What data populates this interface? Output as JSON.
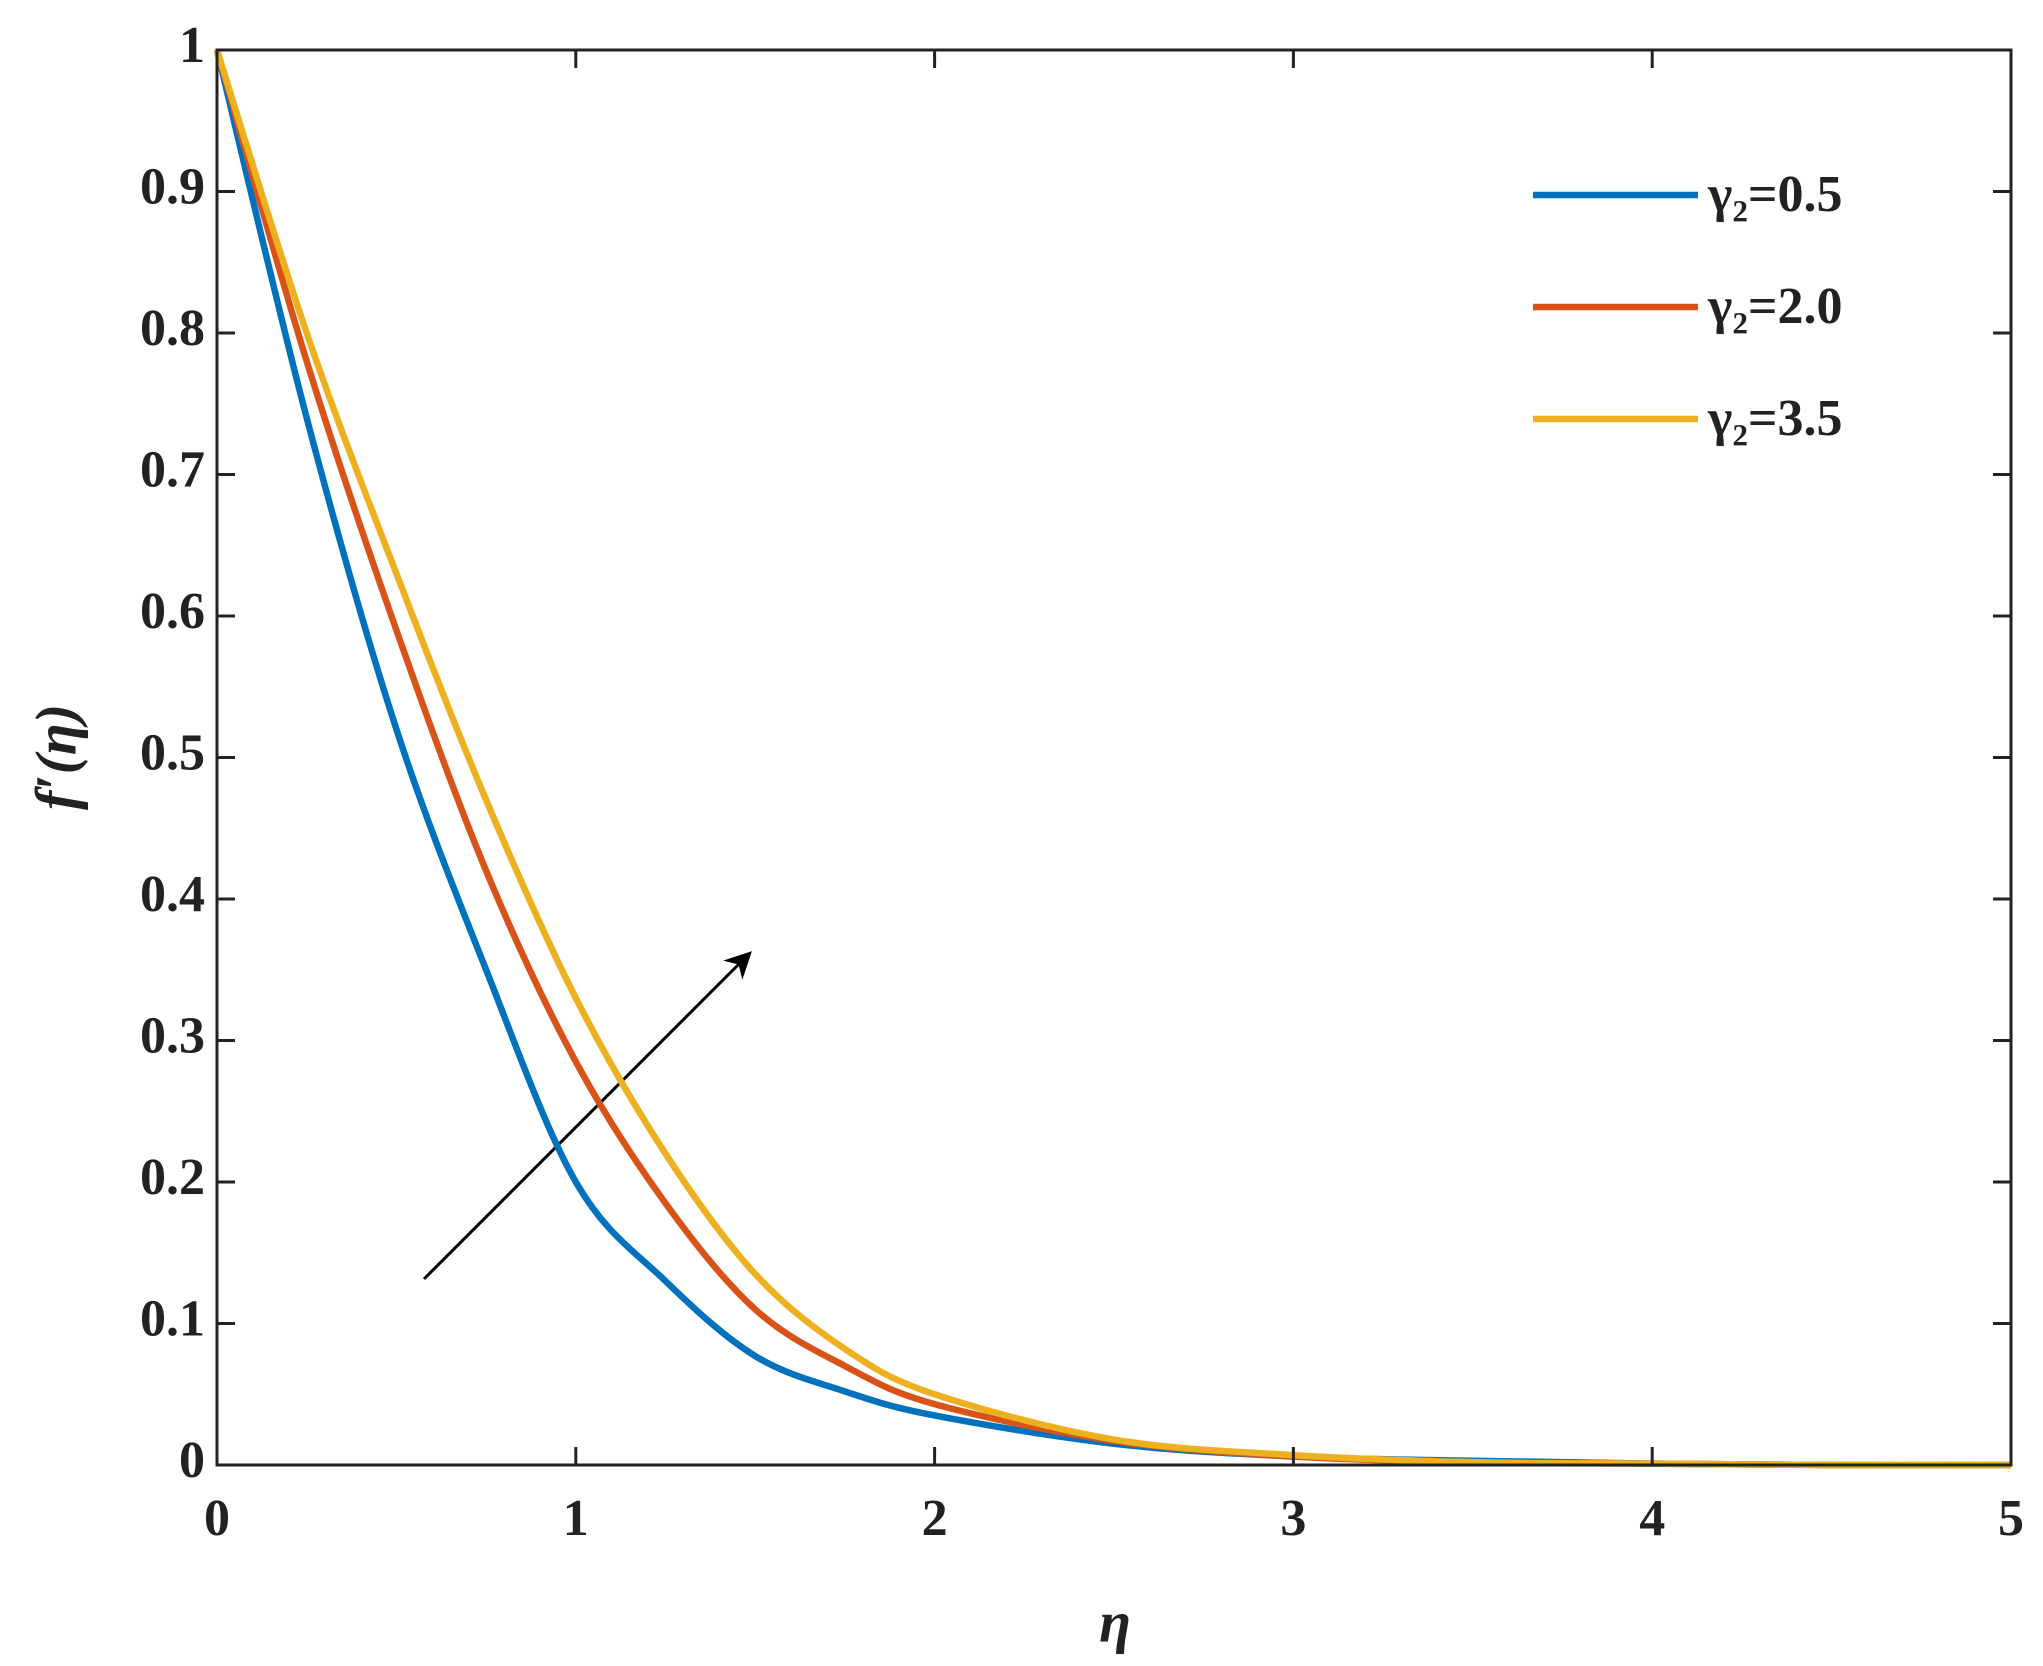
{
  "chart_data": {
    "type": "line",
    "xlabel": "η",
    "ylabel": "f′(η)",
    "x": [
      0,
      0.25,
      0.5,
      0.75,
      1,
      1.25,
      1.5,
      1.75,
      2,
      2.5,
      3,
      3.5,
      4,
      4.5,
      5
    ],
    "series": [
      {
        "name": "γ₂=0.5",
        "color": "#0072BD",
        "values": [
          1,
          0.74,
          0.52,
          0.35,
          0.2,
          0.13,
          0.077,
          0.052,
          0.035,
          0.015,
          0.006,
          0.003,
          0.001,
          0,
          0
        ]
      },
      {
        "name": "γ₂=2.0",
        "color": "#D95319",
        "values": [
          1,
          0.78,
          0.59,
          0.42,
          0.285,
          0.185,
          0.11,
          0.07,
          0.043,
          0.017,
          0.006,
          0.002,
          0.001,
          0,
          0
        ]
      },
      {
        "name": "γ₂=3.5",
        "color": "#EDB120",
        "values": [
          1,
          0.8,
          0.63,
          0.47,
          0.33,
          0.22,
          0.135,
          0.082,
          0.05,
          0.018,
          0.007,
          0.002,
          0.001,
          0,
          0
        ]
      }
    ],
    "xlim": [
      0,
      5
    ],
    "ylim": [
      0,
      1
    ],
    "xticks": [
      0,
      1,
      2,
      3,
      4,
      5
    ],
    "yticks": [
      0,
      0.1,
      0.2,
      0.3,
      0.4,
      0.5,
      0.6,
      0.7,
      0.8,
      0.9,
      1
    ],
    "grid": false,
    "legend": "upper right"
  }
}
